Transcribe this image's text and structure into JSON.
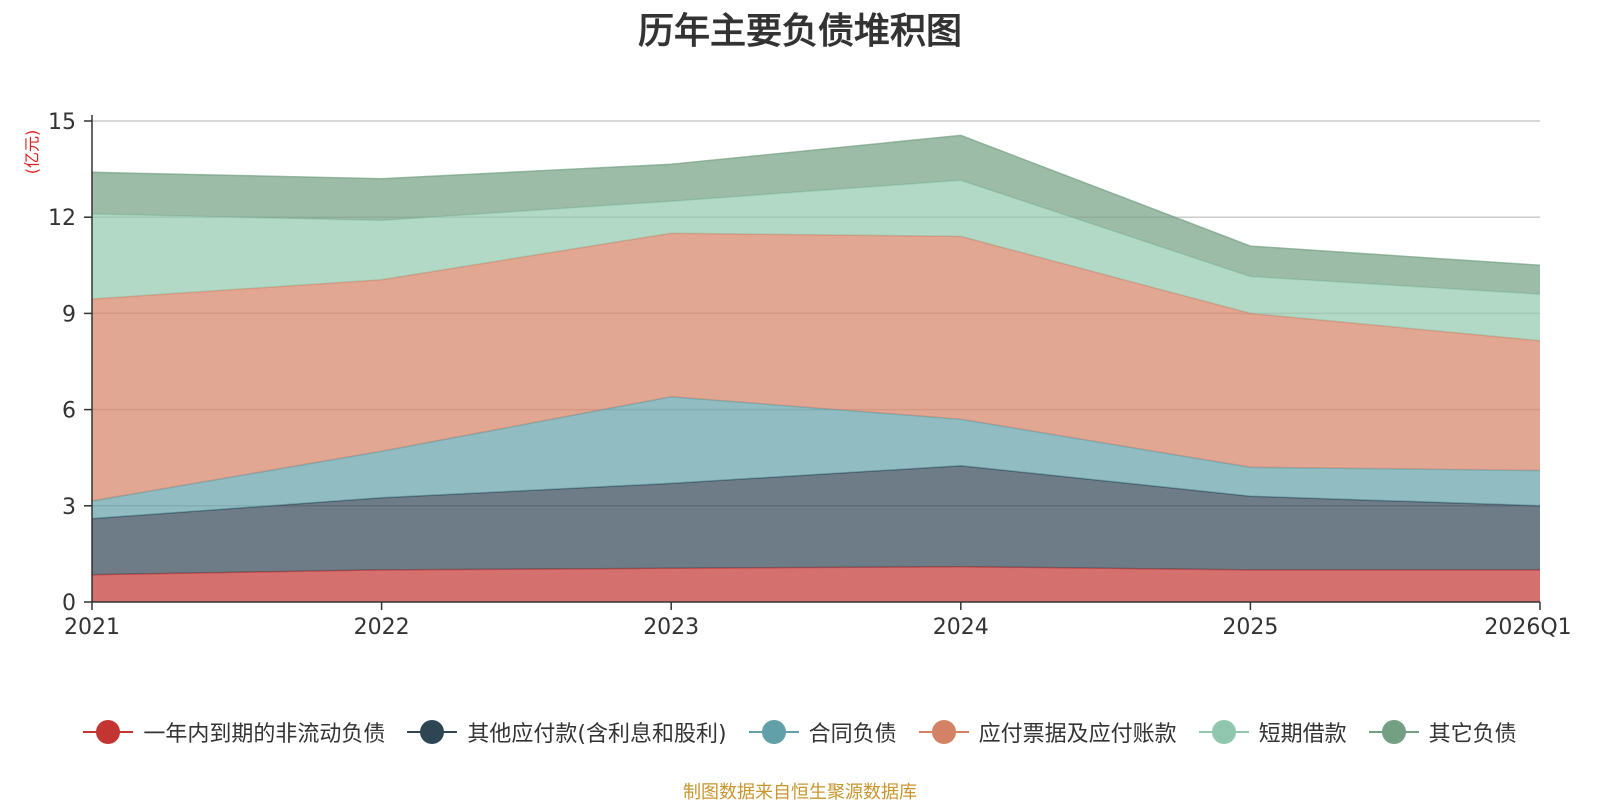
{
  "chart_data": {
    "type": "area",
    "title": "历年主要负债堆积图",
    "unit_label": "(亿元)",
    "source": "制图数据来自恒生聚源数据库",
    "stacked": true,
    "grid": true,
    "legend_position": "bottom",
    "categories": [
      "2021",
      "2022",
      "2023",
      "2024",
      "2025",
      "2026Q1"
    ],
    "ylim": [
      0,
      15
    ],
    "yticks": [
      "0",
      "3",
      "6",
      "9",
      "12",
      "15"
    ],
    "series": [
      {
        "name": "一年内到期的非流动负债",
        "color": "#c23531",
        "values": [
          0.85,
          1.0,
          1.05,
          1.1,
          1.0,
          1.0
        ]
      },
      {
        "name": "其他应付款(含利息和股利)",
        "color": "#2f4554",
        "values": [
          1.75,
          2.25,
          2.65,
          3.15,
          2.3,
          2.0
        ]
      },
      {
        "name": "合同负债",
        "color": "#61a0a8",
        "values": [
          0.55,
          1.45,
          2.7,
          1.45,
          0.9,
          1.1
        ]
      },
      {
        "name": "应付票据及应付账款",
        "color": "#d48265",
        "values": [
          6.3,
          5.35,
          5.1,
          5.7,
          4.8,
          4.05
        ]
      },
      {
        "name": "短期借款",
        "color": "#91c7ae",
        "values": [
          2.65,
          1.85,
          1.0,
          1.75,
          1.15,
          1.45
        ]
      },
      {
        "name": "其它负债",
        "color": "#749f83",
        "values": [
          1.3,
          1.3,
          1.15,
          1.4,
          0.95,
          0.9
        ]
      }
    ]
  }
}
